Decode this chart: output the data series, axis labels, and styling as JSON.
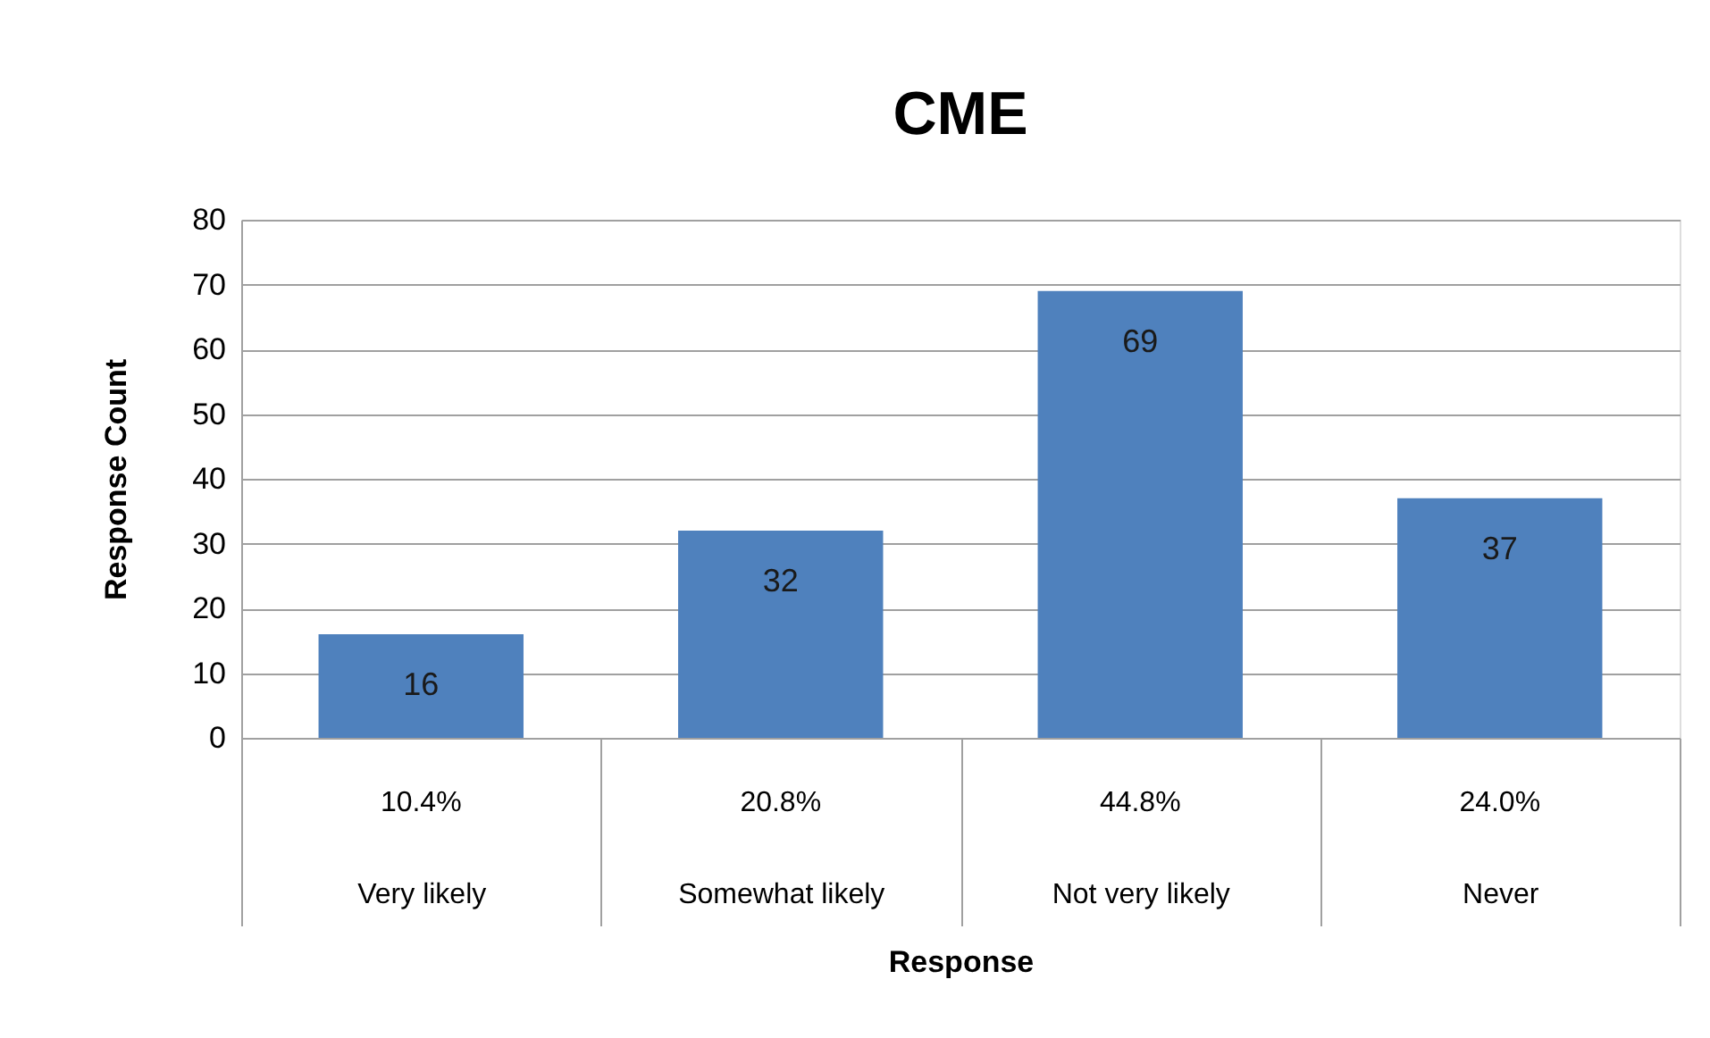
{
  "chart_data": {
    "type": "bar",
    "title": "CME",
    "xlabel": "Response",
    "ylabel": "Response Count",
    "categories": [
      "Very likely",
      "Somewhat likely",
      "Not very likely",
      "Never"
    ],
    "values": [
      16,
      32,
      69,
      37
    ],
    "color": "#4f81bd",
    "ylim": [
      0,
      80
    ],
    "yticks": [
      0,
      10,
      20,
      30,
      40,
      50,
      60,
      70,
      80
    ],
    "grid": "y",
    "data_labels": true,
    "annotations": [
      "10.4%",
      "20.8%",
      "44.8%",
      "24.0%"
    ]
  }
}
